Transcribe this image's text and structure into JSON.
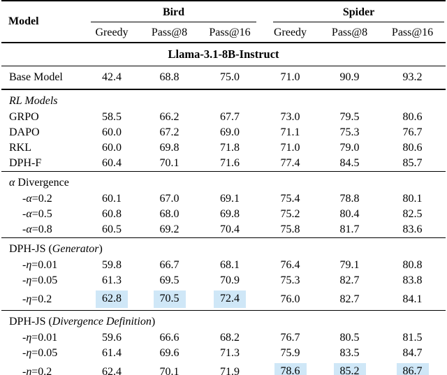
{
  "colors": {
    "highlight": "#cfe7f7",
    "rule": "#000000"
  },
  "header": {
    "model": "Model",
    "group1": "Bird",
    "group2": "Spider",
    "cols": [
      "Greedy",
      "Pass@8",
      "Pass@16",
      "Greedy",
      "Pass@8",
      "Pass@16"
    ]
  },
  "model_banner": "Llama-3.1-8B-Instruct",
  "sections": [
    {
      "rows": [
        {
          "label": {
            "pre": "Base Model",
            "em": "",
            "post": ""
          },
          "values": [
            "42.4",
            "68.8",
            "75.0",
            "71.0",
            "90.9",
            "93.2"
          ]
        }
      ]
    },
    {
      "title": {
        "pre": "",
        "em": "RL Models",
        "post": ""
      },
      "rows": [
        {
          "label": {
            "pre": "GRPO",
            "em": "",
            "post": ""
          },
          "values": [
            "58.5",
            "66.2",
            "67.7",
            "73.0",
            "79.5",
            "80.6"
          ]
        },
        {
          "label": {
            "pre": "DAPO",
            "em": "",
            "post": ""
          },
          "values": [
            "60.0",
            "67.2",
            "69.0",
            "71.1",
            "75.3",
            "76.7"
          ]
        },
        {
          "label": {
            "pre": "RKL",
            "em": "",
            "post": ""
          },
          "values": [
            "60.0",
            "69.8",
            "71.8",
            "71.0",
            "79.0",
            "80.6"
          ]
        },
        {
          "label": {
            "pre": "DPH-F",
            "em": "",
            "post": ""
          },
          "values": [
            "60.4",
            "70.1",
            "71.6",
            "77.4",
            "84.5",
            "85.7"
          ]
        }
      ]
    },
    {
      "title": {
        "pre": "",
        "em": "α",
        "post": " Divergence"
      },
      "rows": [
        {
          "label": {
            "pre": "-",
            "em": "α",
            "post": "=0.2"
          },
          "values": [
            "60.1",
            "67.0",
            "69.1",
            "75.4",
            "78.8",
            "80.1"
          ]
        },
        {
          "label": {
            "pre": "-",
            "em": "α",
            "post": "=0.5"
          },
          "values": [
            "60.8",
            "68.0",
            "69.8",
            "75.2",
            "80.4",
            "82.5"
          ]
        },
        {
          "label": {
            "pre": "-",
            "em": "α",
            "post": "=0.8"
          },
          "values": [
            "60.5",
            "69.2",
            "70.4",
            "75.8",
            "81.7",
            "83.6"
          ]
        }
      ]
    },
    {
      "title": {
        "pre": "DPH-JS (",
        "em": "Generator",
        "post": ")"
      },
      "rows": [
        {
          "label": {
            "pre": "-",
            "em": "η",
            "post": "=0.01"
          },
          "values": [
            "59.8",
            "66.7",
            "68.1",
            "76.4",
            "79.1",
            "80.8"
          ]
        },
        {
          "label": {
            "pre": "-",
            "em": "η",
            "post": "=0.05"
          },
          "values": [
            "61.3",
            "69.5",
            "70.9",
            "75.3",
            "82.7",
            "83.8"
          ]
        },
        {
          "label": {
            "pre": "-",
            "em": "η",
            "post": "=0.2"
          },
          "values": [
            "62.8",
            "70.5",
            "72.4",
            "76.0",
            "82.7",
            "84.1"
          ],
          "highlighted_columns": [
            0,
            1,
            2
          ]
        }
      ]
    },
    {
      "title": {
        "pre": "DPH-JS (",
        "em": "Divergence Definition",
        "post": ")"
      },
      "rows": [
        {
          "label": {
            "pre": "-",
            "em": "η",
            "post": "=0.01"
          },
          "values": [
            "59.6",
            "66.6",
            "68.2",
            "76.7",
            "80.5",
            "81.5"
          ]
        },
        {
          "label": {
            "pre": "-",
            "em": "η",
            "post": "=0.05"
          },
          "values": [
            "61.4",
            "69.6",
            "71.3",
            "75.9",
            "83.5",
            "84.7"
          ]
        },
        {
          "label": {
            "pre": "-",
            "em": "η",
            "post": "=0.2"
          },
          "values": [
            "62.4",
            "70.1",
            "71.9",
            "78.6",
            "85.2",
            "86.7"
          ],
          "highlighted_columns": [
            3,
            4,
            5
          ]
        }
      ]
    }
  ]
}
